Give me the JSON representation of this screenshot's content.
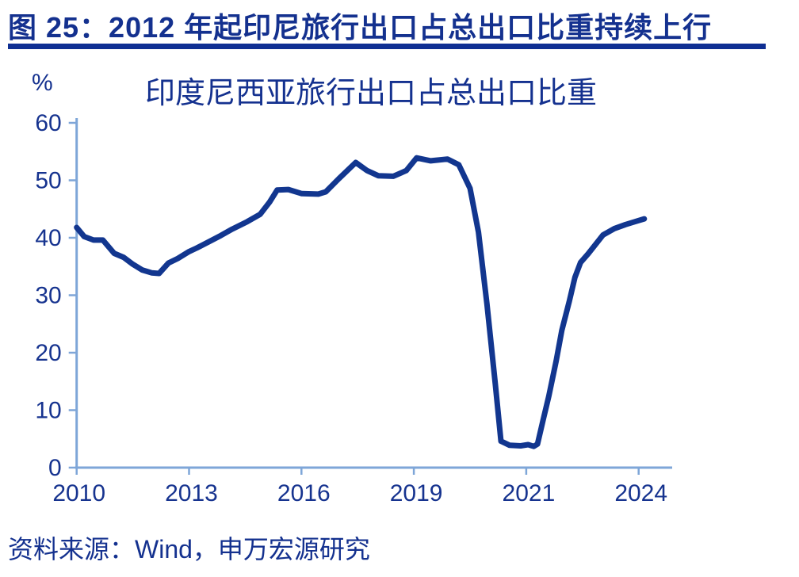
{
  "header": {
    "title": "图 25：2012 年起印尼旅行出口占总出口比重持续上行"
  },
  "chart": {
    "title": "印度尼西亚旅行出口占总出口比重",
    "unit_label": "%"
  },
  "source": {
    "label": "资料来源：Wind，申万宏源研究"
  },
  "colors": {
    "title_navy": "#14318f",
    "rule_blue": "#0f2f93",
    "line_navy": "#12368f",
    "axis_light_blue": "#7ea6d8",
    "tick_label_navy": "#16338f",
    "background": "#ffffff"
  },
  "chart_data": {
    "type": "line",
    "title": "印度尼西亚旅行出口占总出口比重",
    "xlabel": "",
    "ylabel": "%",
    "ylim": [
      0,
      60
    ],
    "y_ticks": [
      0,
      10,
      20,
      30,
      40,
      50,
      60
    ],
    "x_tick_labels": [
      "2010",
      "2013",
      "2016",
      "2019",
      "2021",
      "2024"
    ],
    "x_tick_years": [
      2010,
      2013,
      2016,
      2019,
      2021,
      2024
    ],
    "grid": false,
    "legend": "none",
    "series": [
      {
        "name": "印度尼西亚旅行出口占总出口比重",
        "points": [
          [
            2010.0,
            41.8
          ],
          [
            2010.2,
            40.2
          ],
          [
            2010.45,
            39.6
          ],
          [
            2010.7,
            39.6
          ],
          [
            2011.0,
            37.3
          ],
          [
            2011.25,
            36.6
          ],
          [
            2011.5,
            35.4
          ],
          [
            2011.75,
            34.4
          ],
          [
            2012.0,
            33.9
          ],
          [
            2012.2,
            33.8
          ],
          [
            2012.45,
            35.6
          ],
          [
            2012.7,
            36.4
          ],
          [
            2013.0,
            37.6
          ],
          [
            2013.2,
            38.2
          ],
          [
            2013.5,
            39.2
          ],
          [
            2013.85,
            40.4
          ],
          [
            2014.15,
            41.5
          ],
          [
            2014.55,
            42.8
          ],
          [
            2014.9,
            44.1
          ],
          [
            2015.15,
            46.2
          ],
          [
            2015.35,
            48.3
          ],
          [
            2015.65,
            48.4
          ],
          [
            2016.0,
            47.7
          ],
          [
            2016.45,
            47.6
          ],
          [
            2016.65,
            48.0
          ],
          [
            2017.0,
            50.3
          ],
          [
            2017.45,
            53.1
          ],
          [
            2017.75,
            51.7
          ],
          [
            2018.05,
            50.8
          ],
          [
            2018.45,
            50.7
          ],
          [
            2018.8,
            51.7
          ],
          [
            2019.05,
            53.9
          ],
          [
            2019.3,
            53.4
          ],
          [
            2019.6,
            53.7
          ],
          [
            2019.8,
            52.7
          ],
          [
            2020.0,
            48.6
          ],
          [
            2020.15,
            41.0
          ],
          [
            2020.3,
            28.5
          ],
          [
            2020.45,
            14.5
          ],
          [
            2020.55,
            4.6
          ],
          [
            2020.7,
            3.9
          ],
          [
            2020.9,
            3.8
          ],
          [
            2021.05,
            4.0
          ],
          [
            2021.2,
            3.7
          ],
          [
            2021.3,
            4.1
          ],
          [
            2021.45,
            8.3
          ],
          [
            2021.6,
            12.4
          ],
          [
            2021.8,
            18.6
          ],
          [
            2021.95,
            23.9
          ],
          [
            2022.15,
            29.0
          ],
          [
            2022.3,
            33.1
          ],
          [
            2022.45,
            35.7
          ],
          [
            2022.65,
            37.2
          ],
          [
            2023.05,
            40.5
          ],
          [
            2023.35,
            41.6
          ],
          [
            2023.65,
            42.3
          ],
          [
            2023.9,
            42.8
          ],
          [
            2024.15,
            43.3
          ]
        ]
      }
    ]
  }
}
